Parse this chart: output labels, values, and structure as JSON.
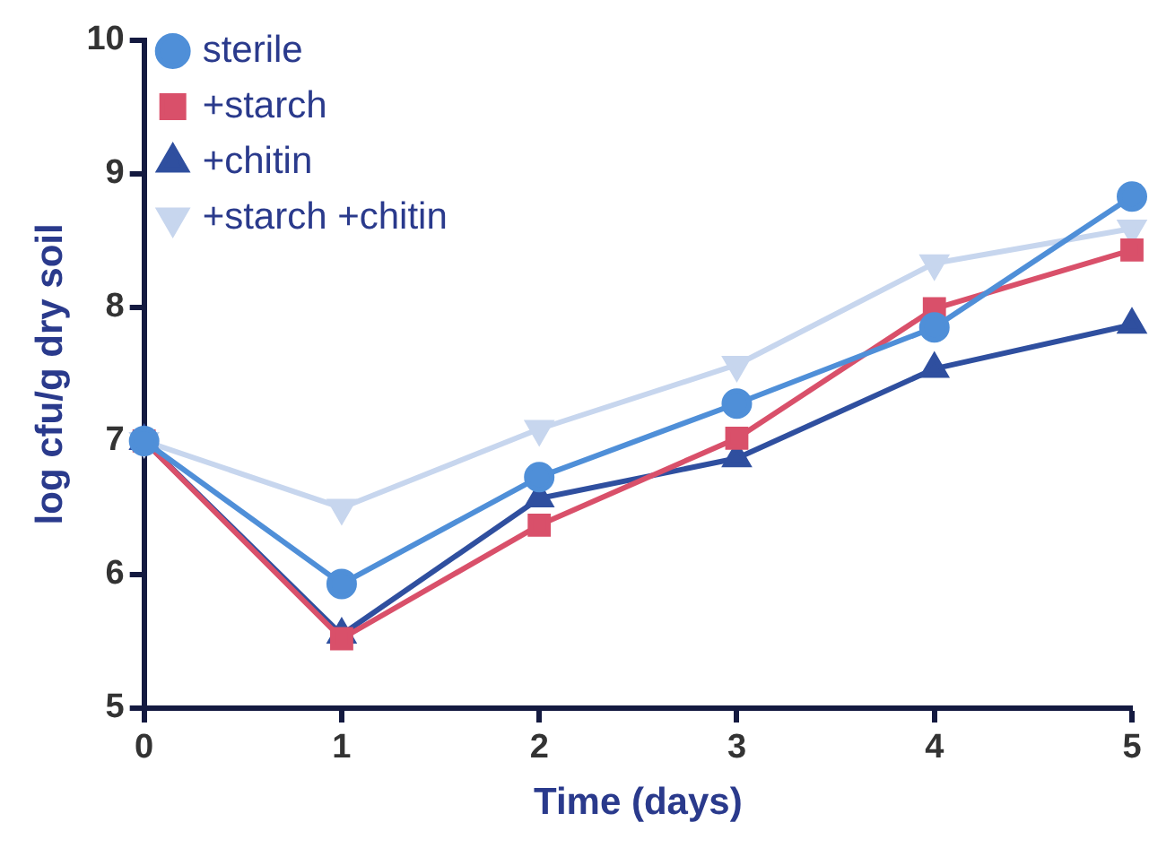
{
  "chart_data": {
    "type": "line",
    "xlabel": "Time (days)",
    "ylabel": "log cfu/g dry soil",
    "x": [
      0,
      1,
      2,
      3,
      4,
      5
    ],
    "series": [
      {
        "name": "sterile",
        "color": "#4f8fd8",
        "marker": "circle",
        "values": [
          7.0,
          5.93,
          6.73,
          7.28,
          7.85,
          8.83
        ]
      },
      {
        "name": "+starch",
        "color": "#d9506a",
        "marker": "square",
        "values": [
          7.0,
          5.52,
          6.37,
          7.02,
          7.99,
          8.43
        ]
      },
      {
        "name": "+chitin",
        "color": "#2f4f9f",
        "marker": "triangle",
        "values": [
          7.0,
          5.55,
          6.57,
          6.87,
          7.54,
          7.87
        ]
      },
      {
        "name": "+starch +chitin",
        "color": "#c7d6ee",
        "marker": "triangle-down",
        "values": [
          7.0,
          6.5,
          7.09,
          7.57,
          8.33,
          8.59
        ]
      }
    ],
    "xlim": [
      0,
      5
    ],
    "xticks": [
      0,
      1,
      2,
      3,
      4,
      5
    ],
    "ylim": [
      5,
      10
    ],
    "yticks": [
      5,
      6,
      7,
      8,
      9,
      10
    ],
    "grid": false,
    "legend": "top left",
    "line_style": "solid"
  }
}
